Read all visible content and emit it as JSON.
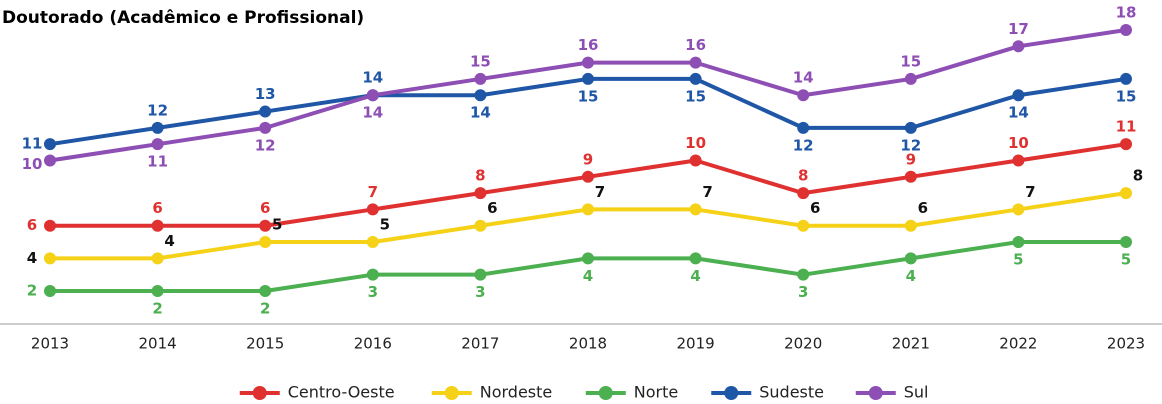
{
  "chart_data": {
    "type": "line",
    "title": "Doutorado (Acadêmico e Profissional)",
    "categories": [
      "2013",
      "2014",
      "2015",
      "2016",
      "2017",
      "2018",
      "2019",
      "2020",
      "2021",
      "2022",
      "2023"
    ],
    "ylim": [
      0,
      18
    ],
    "series": [
      {
        "name": "Centro-Oeste",
        "color": "#e03131",
        "values": [
          6,
          6,
          6,
          7,
          8,
          9,
          10,
          8,
          9,
          10,
          11
        ]
      },
      {
        "name": "Nordeste",
        "color": "#f5d218",
        "values": [
          4,
          4,
          5,
          5,
          6,
          7,
          7,
          6,
          6,
          7,
          8
        ]
      },
      {
        "name": "Norte",
        "color": "#4caf50",
        "values": [
          2,
          2,
          2,
          3,
          3,
          4,
          4,
          3,
          4,
          5,
          5
        ]
      },
      {
        "name": "Sudeste",
        "color": "#1f56a6",
        "values": [
          11,
          12,
          13,
          14,
          14,
          15,
          15,
          12,
          12,
          14,
          15
        ]
      },
      {
        "name": "Sul",
        "color": "#8e4fb5",
        "values": [
          10,
          11,
          12,
          14,
          15,
          16,
          16,
          14,
          15,
          17,
          18
        ]
      }
    ]
  }
}
